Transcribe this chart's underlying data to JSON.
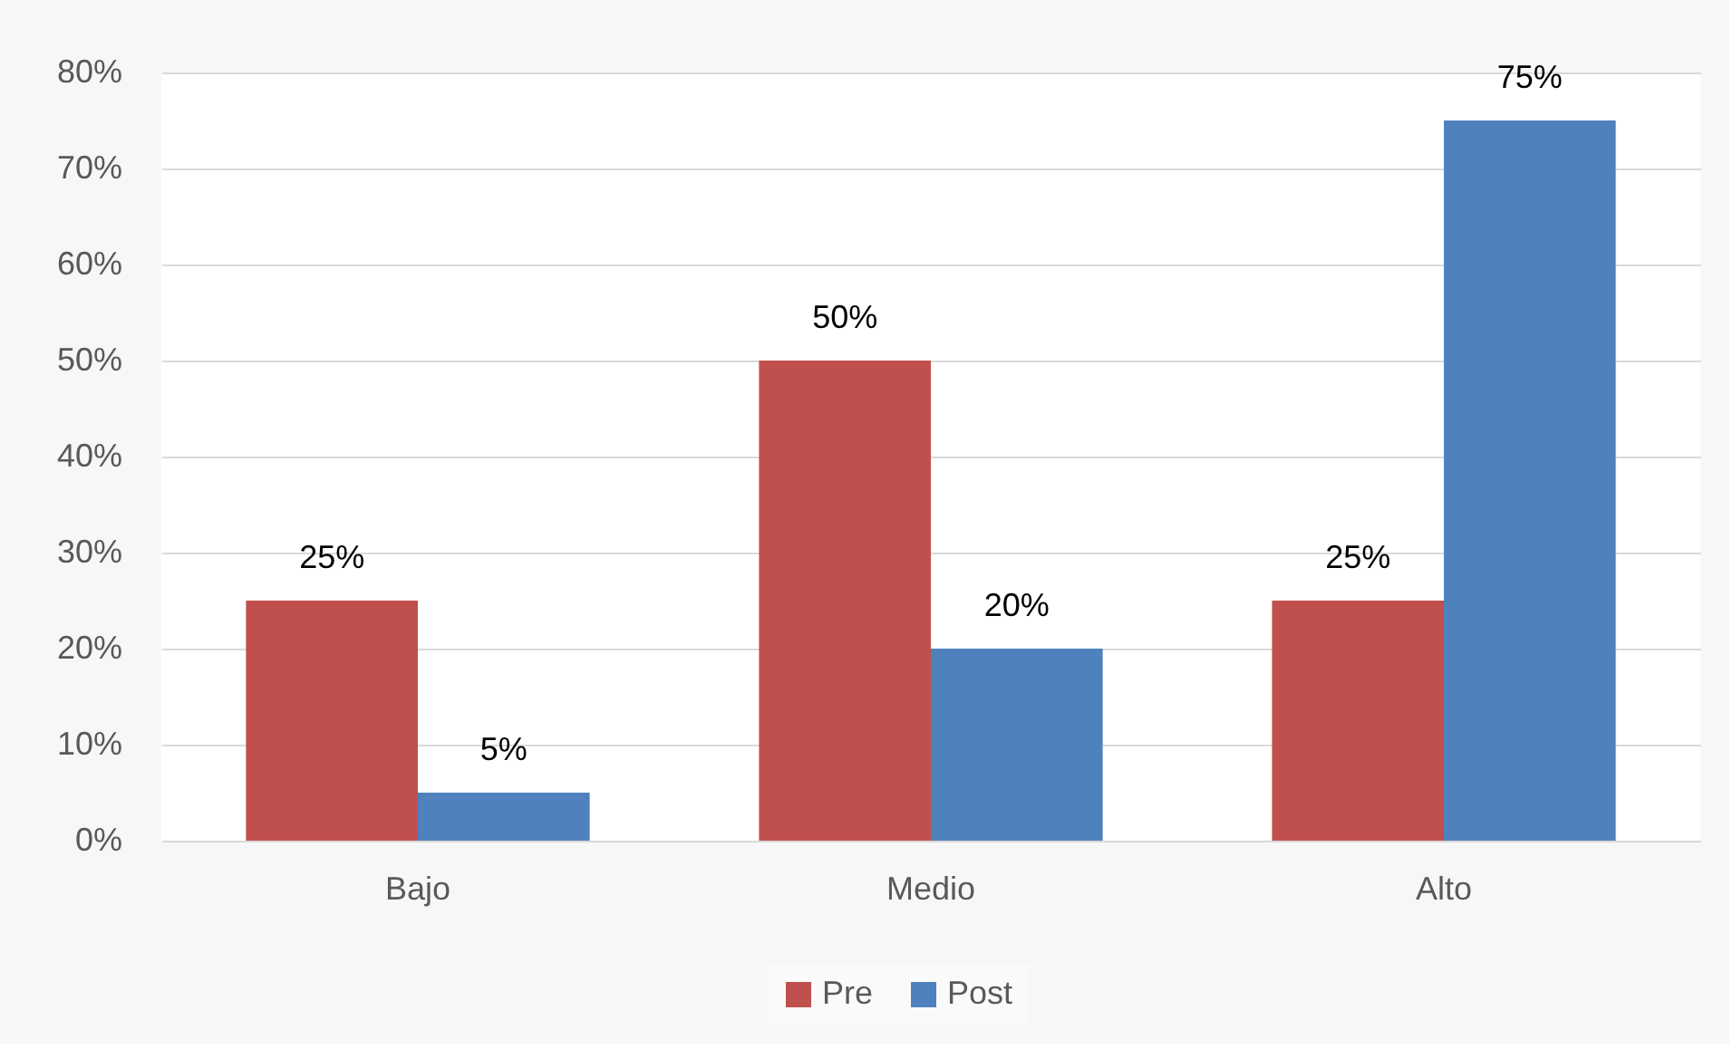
{
  "chart_data": {
    "type": "bar",
    "categories": [
      "Bajo",
      "Medio",
      "Alto"
    ],
    "series": [
      {
        "name": "Pre",
        "color": "#c0504d",
        "values": [
          25,
          50,
          25
        ],
        "value_labels": [
          "25%",
          "50%",
          "25%"
        ]
      },
      {
        "name": "Post",
        "color": "#4f81bd",
        "values": [
          5,
          20,
          75
        ],
        "value_labels": [
          "5%",
          "20%",
          "75%"
        ]
      }
    ],
    "ylim": [
      0,
      80
    ],
    "yticks": [
      {
        "value": 0,
        "label": "0%"
      },
      {
        "value": 10,
        "label": "10%"
      },
      {
        "value": 20,
        "label": "20%"
      },
      {
        "value": 30,
        "label": "30%"
      },
      {
        "value": 40,
        "label": "40%"
      },
      {
        "value": 50,
        "label": "50%"
      },
      {
        "value": 60,
        "label": "60%"
      },
      {
        "value": 70,
        "label": "70%"
      },
      {
        "value": 80,
        "label": "80%"
      }
    ],
    "grid": "y",
    "legend": "bottom"
  }
}
